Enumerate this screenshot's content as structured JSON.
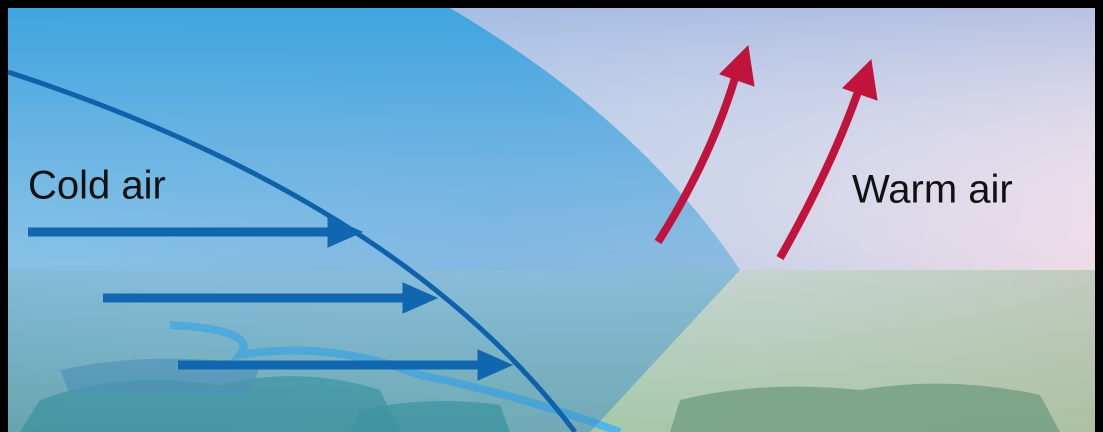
{
  "labels": {
    "cold": "Cold air",
    "warm": "Warm air"
  }
}
